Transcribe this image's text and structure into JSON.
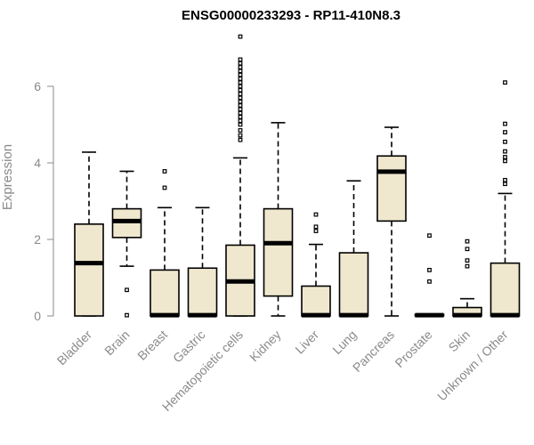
{
  "chart_data": {
    "type": "box",
    "title": "ENSG00000233293 - RP11-410N8.3",
    "ylabel": "Expression",
    "xlabel": "",
    "ylim": [
      0,
      7.3
    ],
    "yticks": [
      0,
      2,
      4,
      6
    ],
    "box_fill": "#efe8cf",
    "axis_color": "#8a8a8a",
    "categories": [
      "Bladder",
      "Brain",
      "Breast",
      "Gastric",
      "Hematopoietic cells",
      "Kidney",
      "Liver",
      "Lung",
      "Pancreas",
      "Prostate",
      "Skin",
      "Unknown / Other"
    ],
    "boxes": [
      {
        "name": "Bladder",
        "q1": 0,
        "median": 1.38,
        "q3": 2.4,
        "whisker_low": 0,
        "whisker_high": 4.28,
        "outliers": []
      },
      {
        "name": "Brain",
        "q1": 2.05,
        "median": 2.48,
        "q3": 2.8,
        "whisker_low": 1.3,
        "whisker_high": 3.78,
        "outliers": [
          0.68,
          0.02
        ]
      },
      {
        "name": "Breast",
        "q1": 0,
        "median": 0.02,
        "q3": 1.2,
        "whisker_low": 0,
        "whisker_high": 2.83,
        "outliers": [
          3.35,
          3.78
        ]
      },
      {
        "name": "Gastric",
        "q1": 0,
        "median": 0.02,
        "q3": 1.25,
        "whisker_low": 0,
        "whisker_high": 2.83,
        "outliers": []
      },
      {
        "name": "Hematopoietic cells",
        "q1": 0,
        "median": 0.9,
        "q3": 1.85,
        "whisker_low": 0,
        "whisker_high": 4.13,
        "outliers": [
          4.6,
          4.72,
          4.85,
          5.0,
          5.1,
          5.2,
          5.3,
          5.4,
          5.5,
          5.6,
          5.7,
          5.8,
          5.9,
          6.0,
          6.1,
          6.2,
          6.3,
          6.4,
          6.5,
          6.6,
          6.7,
          7.3
        ]
      },
      {
        "name": "Kidney",
        "q1": 0.52,
        "median": 1.9,
        "q3": 2.8,
        "whisker_low": 0,
        "whisker_high": 5.05,
        "outliers": []
      },
      {
        "name": "Liver",
        "q1": 0,
        "median": 0.02,
        "q3": 0.78,
        "whisker_low": 0,
        "whisker_high": 1.87,
        "outliers": [
          2.22,
          2.33,
          2.65
        ]
      },
      {
        "name": "Lung",
        "q1": 0,
        "median": 0.02,
        "q3": 1.65,
        "whisker_low": 0,
        "whisker_high": 3.53,
        "outliers": []
      },
      {
        "name": "Pancreas",
        "q1": 2.48,
        "median": 3.77,
        "q3": 4.18,
        "whisker_low": 0,
        "whisker_high": 4.93,
        "outliers": []
      },
      {
        "name": "Prostate",
        "q1": 0,
        "median": 0.02,
        "q3": 0.04,
        "whisker_low": 0,
        "whisker_high": 0.04,
        "outliers": [
          0.9,
          1.2,
          2.1
        ]
      },
      {
        "name": "Skin",
        "q1": 0,
        "median": 0.02,
        "q3": 0.22,
        "whisker_low": 0,
        "whisker_high": 0.45,
        "outliers": [
          1.3,
          1.45,
          1.75,
          1.95
        ]
      },
      {
        "name": "Unknown / Other",
        "q1": 0,
        "median": 0.02,
        "q3": 1.38,
        "whisker_low": 0,
        "whisker_high": 3.2,
        "outliers": [
          3.45,
          3.55,
          4.05,
          4.15,
          4.3,
          4.55,
          4.8,
          5.02,
          6.1
        ]
      }
    ]
  }
}
